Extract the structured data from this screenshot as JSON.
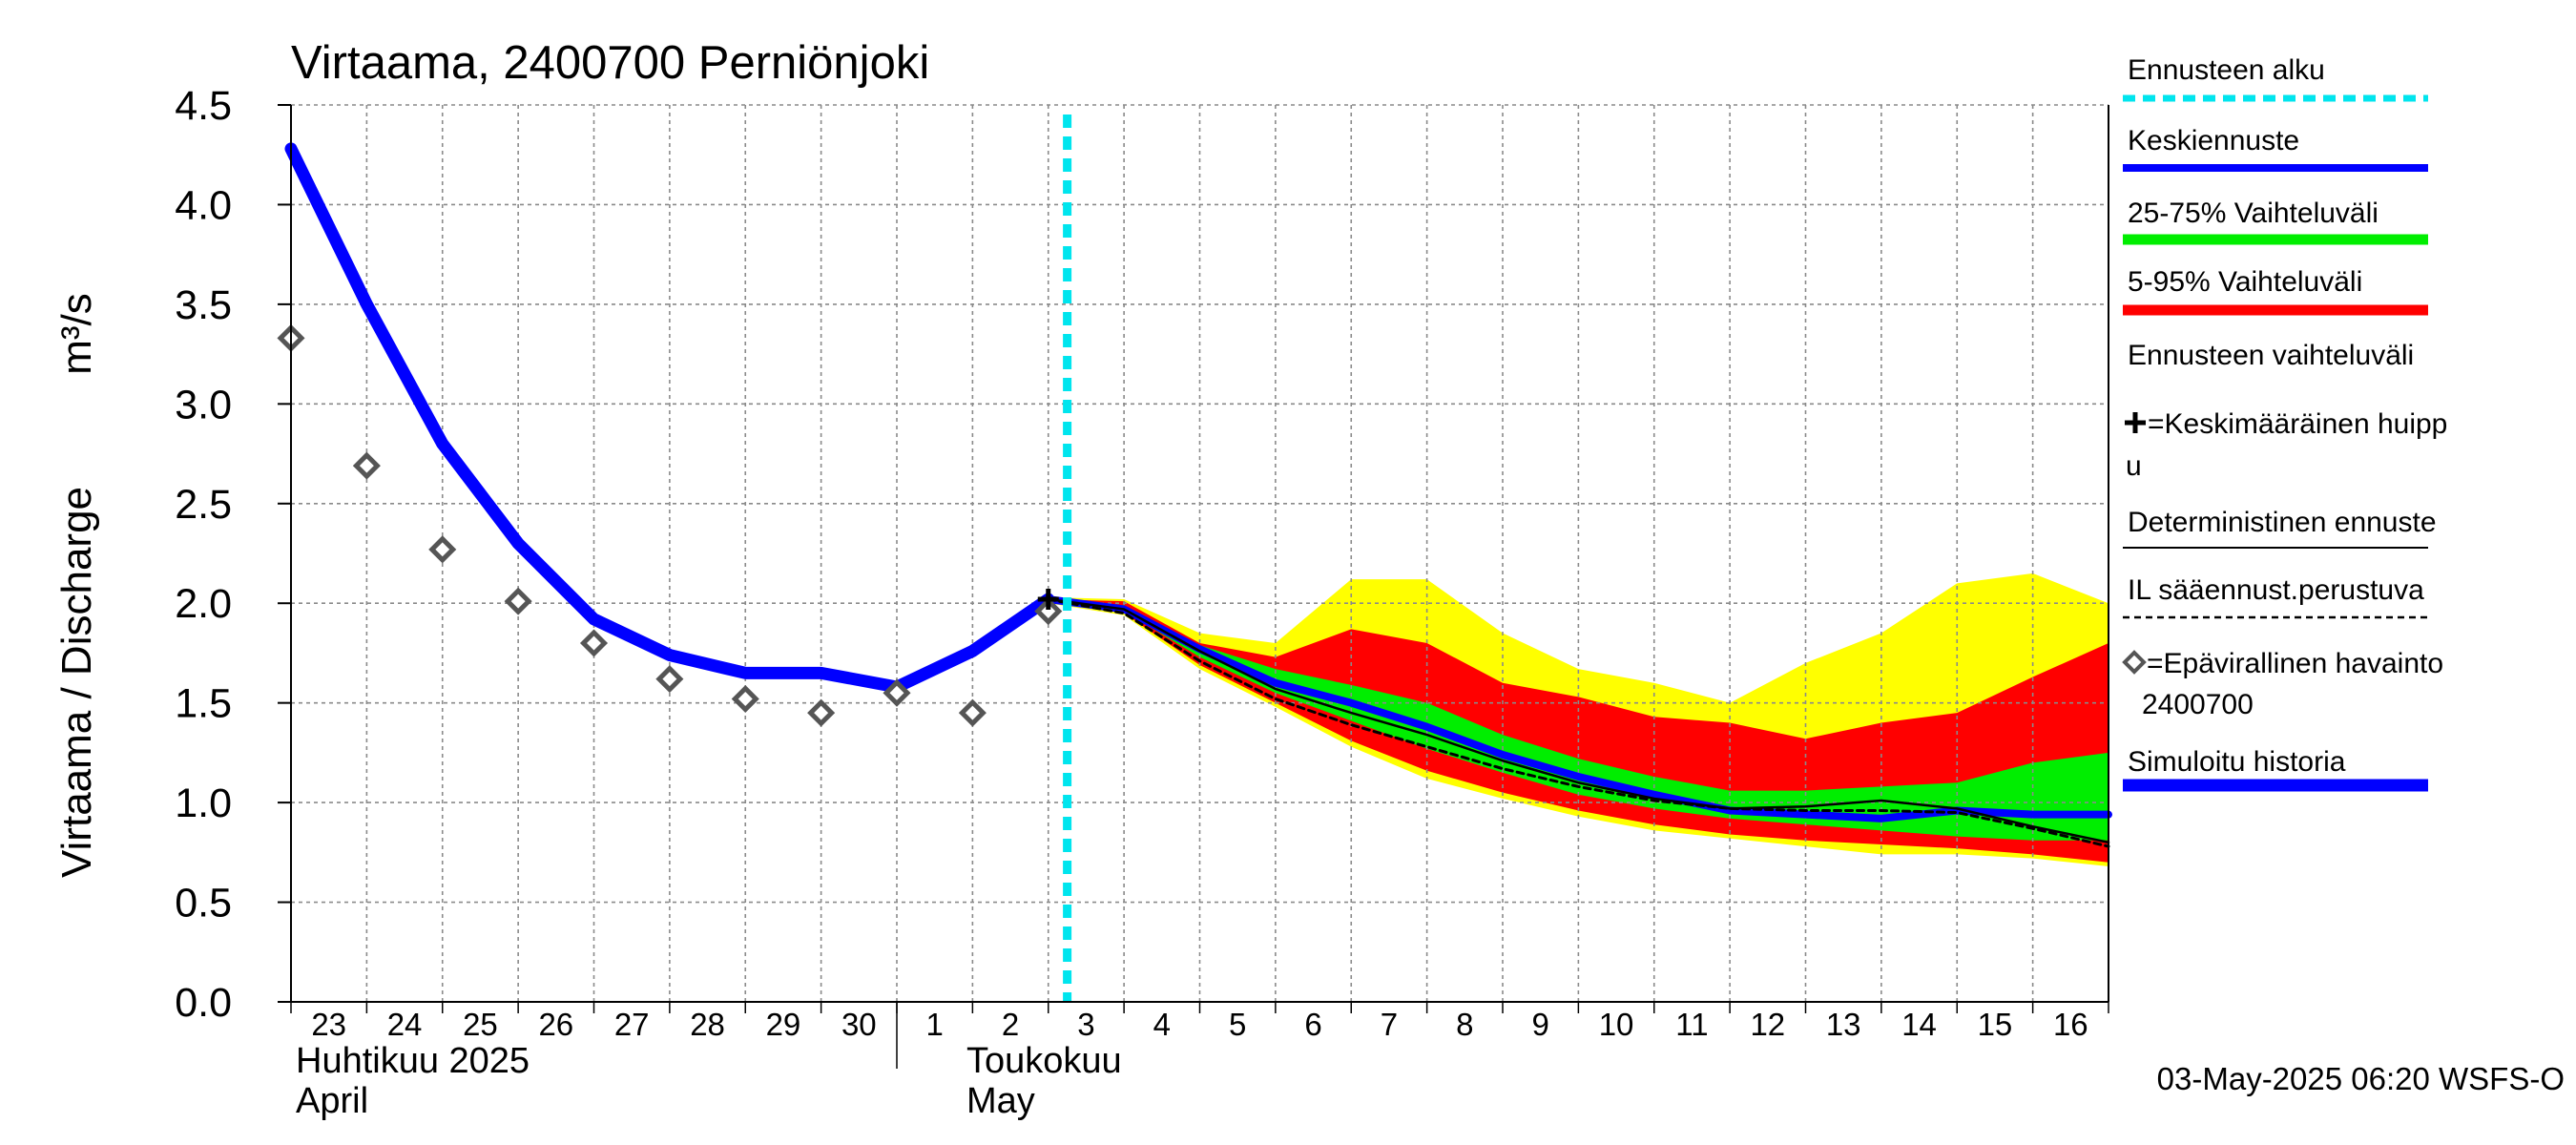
{
  "chart_data": {
    "type": "line",
    "title": "Virtaama, 2400700 Perniönjoki",
    "ylabel": "Virtaama / Discharge",
    "yunit": "m³/s",
    "ylim": [
      0.0,
      4.5
    ],
    "yticks": [
      "0.0",
      "0.5",
      "1.0",
      "1.5",
      "2.0",
      "2.5",
      "3.0",
      "3.5",
      "4.0",
      "4.5"
    ],
    "xlim": [
      "2025-04-23",
      "2025-05-17"
    ],
    "x_tick_labels": [
      "23",
      "24",
      "25",
      "26",
      "27",
      "28",
      "29",
      "30",
      "1",
      "2",
      "3",
      "4",
      "5",
      "6",
      "7",
      "8",
      "9",
      "10",
      "11",
      "12",
      "13",
      "14",
      "15",
      "16"
    ],
    "month_labels": [
      {
        "fi": "Huhtikuu  2025",
        "en": "April"
      },
      {
        "fi": "Toukokuu",
        "en": "May"
      }
    ],
    "forecast_start": "2025-05-03T06:00",
    "grid": true,
    "legend_position": "right",
    "footer": "03-May-2025 06:20 WSFS-O",
    "legend": [
      {
        "label": "Ennusteen alku",
        "style": "dotted",
        "color": "#00e5ee"
      },
      {
        "label": "Keskiennuste",
        "style": "line",
        "color": "#0000ff"
      },
      {
        "label": "25-75% Vaihteluväli",
        "style": "thick",
        "color": "#00ee00"
      },
      {
        "label": "5-95% Vaihteluväli",
        "style": "thick",
        "color": "#ff0000"
      },
      {
        "label": "Ennusteen vaihteluväli",
        "style": "thick",
        "color": "#ffff00"
      },
      {
        "label": "=Keskimääräinen huippu",
        "style": "cross",
        "color": "#000000"
      },
      {
        "label": "Deterministinen ennuste",
        "style": "thin",
        "color": "#000000"
      },
      {
        "label": "IL sääennust.perustuva",
        "style": "dashed",
        "color": "#000000"
      },
      {
        "label": "=Epävirallinen havainto 2400700",
        "style": "diamond",
        "color": "#555555"
      },
      {
        "label": "Simuloitu historia",
        "style": "thicker",
        "color": "#0000ff"
      }
    ],
    "series": [
      {
        "name": "Simuloitu historia",
        "color": "#0000ff",
        "x": [
          "2025-04-23",
          "2025-04-24",
          "2025-04-25",
          "2025-04-26",
          "2025-04-27",
          "2025-04-28",
          "2025-04-29",
          "2025-04-30",
          "2025-05-01",
          "2025-05-02",
          "2025-05-03"
        ],
        "y": [
          4.28,
          3.5,
          2.8,
          2.3,
          1.92,
          1.74,
          1.65,
          1.65,
          1.58,
          1.76,
          2.02
        ]
      },
      {
        "name": "Epävirallinen havainto 2400700",
        "type": "scatter",
        "color": "#555555",
        "x": [
          "2025-04-23",
          "2025-04-24",
          "2025-04-25",
          "2025-04-26",
          "2025-04-27",
          "2025-04-28",
          "2025-04-29",
          "2025-04-30",
          "2025-05-01",
          "2025-05-02",
          "2025-05-03"
        ],
        "y": [
          3.33,
          2.69,
          2.27,
          2.01,
          1.8,
          1.62,
          1.52,
          1.45,
          1.55,
          1.45,
          1.96
        ]
      },
      {
        "name": "Keskiennuste",
        "color": "#0000ff",
        "x": [
          "2025-05-03",
          "2025-05-04",
          "2025-05-05",
          "2025-05-06",
          "2025-05-07",
          "2025-05-08",
          "2025-05-09",
          "2025-05-10",
          "2025-05-11",
          "2025-05-12",
          "2025-05-13",
          "2025-05-14",
          "2025-05-15",
          "2025-05-16",
          "2025-05-17"
        ],
        "y": [
          2.02,
          1.97,
          1.77,
          1.6,
          1.5,
          1.38,
          1.24,
          1.13,
          1.04,
          0.96,
          0.94,
          0.92,
          0.96,
          0.94,
          0.94
        ]
      },
      {
        "name": "Deterministinen ennuste",
        "color": "#000000",
        "x": [
          "2025-05-03",
          "2025-05-04",
          "2025-05-05",
          "2025-05-06",
          "2025-05-07",
          "2025-05-08",
          "2025-05-09",
          "2025-05-10",
          "2025-05-11",
          "2025-05-12",
          "2025-05-13",
          "2025-05-14",
          "2025-05-15",
          "2025-05-16",
          "2025-05-17"
        ],
        "y": [
          2.02,
          1.97,
          1.76,
          1.57,
          1.45,
          1.34,
          1.21,
          1.1,
          1.02,
          0.97,
          0.98,
          1.01,
          0.97,
          0.88,
          0.8
        ]
      },
      {
        "name": "IL sääennust.perustuva",
        "color": "#000000",
        "x": [
          "2025-05-03",
          "2025-05-04",
          "2025-05-05",
          "2025-05-06",
          "2025-05-07",
          "2025-05-08",
          "2025-05-09",
          "2025-05-10",
          "2025-05-11",
          "2025-05-12",
          "2025-05-13",
          "2025-05-14",
          "2025-05-15",
          "2025-05-16",
          "2025-05-17"
        ],
        "y": [
          2.02,
          1.95,
          1.71,
          1.52,
          1.39,
          1.28,
          1.17,
          1.08,
          1.01,
          0.97,
          0.96,
          0.96,
          0.95,
          0.87,
          0.78
        ]
      }
    ],
    "bands": [
      {
        "name": "Ennusteen vaihteluväli",
        "color": "#ffff00",
        "x": [
          "2025-05-03",
          "2025-05-04",
          "2025-05-05",
          "2025-05-06",
          "2025-05-07",
          "2025-05-08",
          "2025-05-09",
          "2025-05-10",
          "2025-05-11",
          "2025-05-12",
          "2025-05-13",
          "2025-05-14",
          "2025-05-15",
          "2025-05-16",
          "2025-05-17"
        ],
        "upper": [
          2.03,
          2.02,
          1.85,
          1.8,
          2.12,
          2.12,
          1.85,
          1.67,
          1.6,
          1.5,
          1.7,
          1.85,
          2.1,
          2.15,
          2.0
        ],
        "lower": [
          2.0,
          1.94,
          1.67,
          1.48,
          1.28,
          1.12,
          1.02,
          0.93,
          0.86,
          0.82,
          0.78,
          0.74,
          0.74,
          0.72,
          0.68
        ]
      },
      {
        "name": "5-95% Vaihteluväli",
        "color": "#ff0000",
        "x": [
          "2025-05-03",
          "2025-05-04",
          "2025-05-05",
          "2025-05-06",
          "2025-05-07",
          "2025-05-08",
          "2025-05-09",
          "2025-05-10",
          "2025-05-11",
          "2025-05-12",
          "2025-05-13",
          "2025-05-14",
          "2025-05-15",
          "2025-05-16",
          "2025-05-17"
        ],
        "upper": [
          2.02,
          2.01,
          1.8,
          1.73,
          1.87,
          1.8,
          1.6,
          1.53,
          1.43,
          1.4,
          1.32,
          1.4,
          1.45,
          1.63,
          1.8
        ],
        "lower": [
          2.01,
          1.95,
          1.69,
          1.5,
          1.31,
          1.16,
          1.05,
          0.96,
          0.89,
          0.84,
          0.81,
          0.79,
          0.77,
          0.74,
          0.7
        ]
      },
      {
        "name": "25-75% Vaihteluväli",
        "color": "#00ee00",
        "x": [
          "2025-05-03",
          "2025-05-04",
          "2025-05-05",
          "2025-05-06",
          "2025-05-07",
          "2025-05-08",
          "2025-05-09",
          "2025-05-10",
          "2025-05-11",
          "2025-05-12",
          "2025-05-13",
          "2025-05-14",
          "2025-05-15",
          "2025-05-16",
          "2025-05-17"
        ],
        "upper": [
          2.02,
          1.99,
          1.79,
          1.67,
          1.59,
          1.5,
          1.34,
          1.22,
          1.13,
          1.06,
          1.06,
          1.08,
          1.1,
          1.2,
          1.25
        ],
        "lower": [
          2.01,
          1.96,
          1.73,
          1.55,
          1.41,
          1.27,
          1.15,
          1.04,
          0.97,
          0.92,
          0.89,
          0.86,
          0.83,
          0.81,
          0.81
        ]
      }
    ],
    "peak_marker": {
      "label": "Keskimääräinen huippu",
      "x": "2025-05-03",
      "y": 2.02
    }
  }
}
